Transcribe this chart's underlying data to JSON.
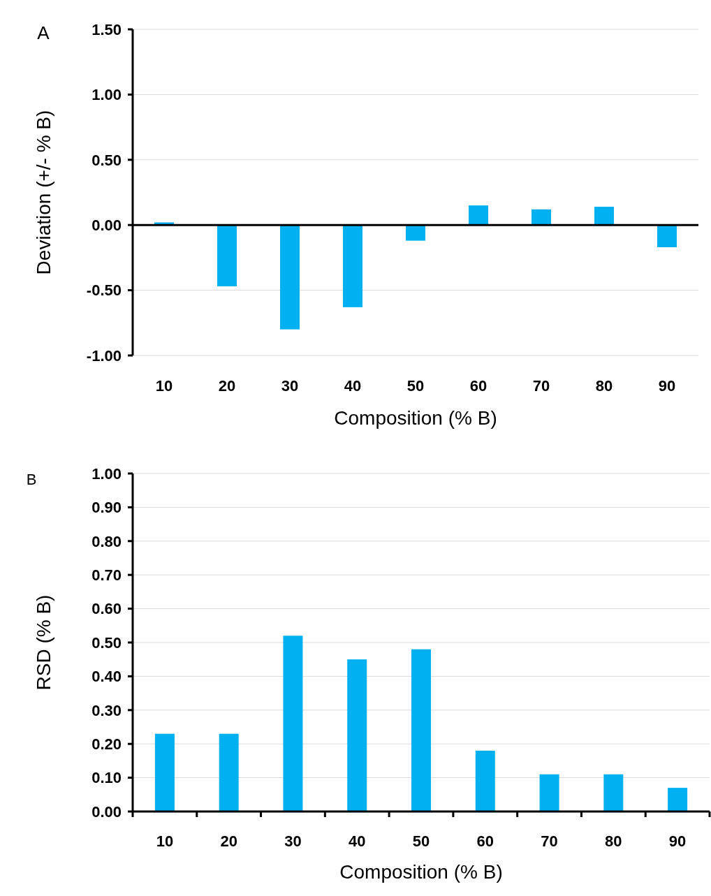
{
  "chart_data": [
    {
      "type": "bar",
      "title": "A",
      "xlabel": "Composition (% B)",
      "ylabel": "Deviation (+/- % B)",
      "categories": [
        "10",
        "20",
        "30",
        "40",
        "50",
        "60",
        "70",
        "80",
        "90"
      ],
      "values": [
        0.02,
        -0.47,
        -0.8,
        -0.63,
        -0.12,
        0.15,
        0.12,
        0.14,
        -0.17
      ],
      "color": "#00b0f0",
      "ylim": [
        -1,
        1.5
      ],
      "yticks": [
        {
          "value": -1,
          "label": "-1.00"
        },
        {
          "value": -0.5,
          "label": "-0.50"
        },
        {
          "value": 0,
          "label": "0.00"
        },
        {
          "value": 0.5,
          "label": "0.50"
        },
        {
          "value": 1,
          "label": "1.00"
        },
        {
          "value": 1.5,
          "label": "1.50"
        }
      ],
      "grid": "y"
    },
    {
      "type": "bar",
      "title": "B",
      "xlabel": "Composition (% B)",
      "ylabel": "RSD (% B)",
      "categories": [
        "10",
        "20",
        "30",
        "40",
        "50",
        "60",
        "70",
        "80",
        "90"
      ],
      "values": [
        0.23,
        0.23,
        0.52,
        0.45,
        0.48,
        0.18,
        0.11,
        0.11,
        0.07
      ],
      "color": "#00b0f0",
      "ylim": [
        0,
        1
      ],
      "yticks": [
        {
          "value": 0,
          "label": "0.00"
        },
        {
          "value": 0.1,
          "label": "0.10"
        },
        {
          "value": 0.2,
          "label": "0.20"
        },
        {
          "value": 0.3,
          "label": "0.30"
        },
        {
          "value": 0.4,
          "label": "0.40"
        },
        {
          "value": 0.5,
          "label": "0.50"
        },
        {
          "value": 0.6,
          "label": "0.60"
        },
        {
          "value": 0.7,
          "label": "0.70"
        },
        {
          "value": 0.8,
          "label": "0.80"
        },
        {
          "value": 0.9,
          "label": "0.90"
        },
        {
          "value": 1,
          "label": "1.00"
        }
      ],
      "grid": "y"
    }
  ]
}
